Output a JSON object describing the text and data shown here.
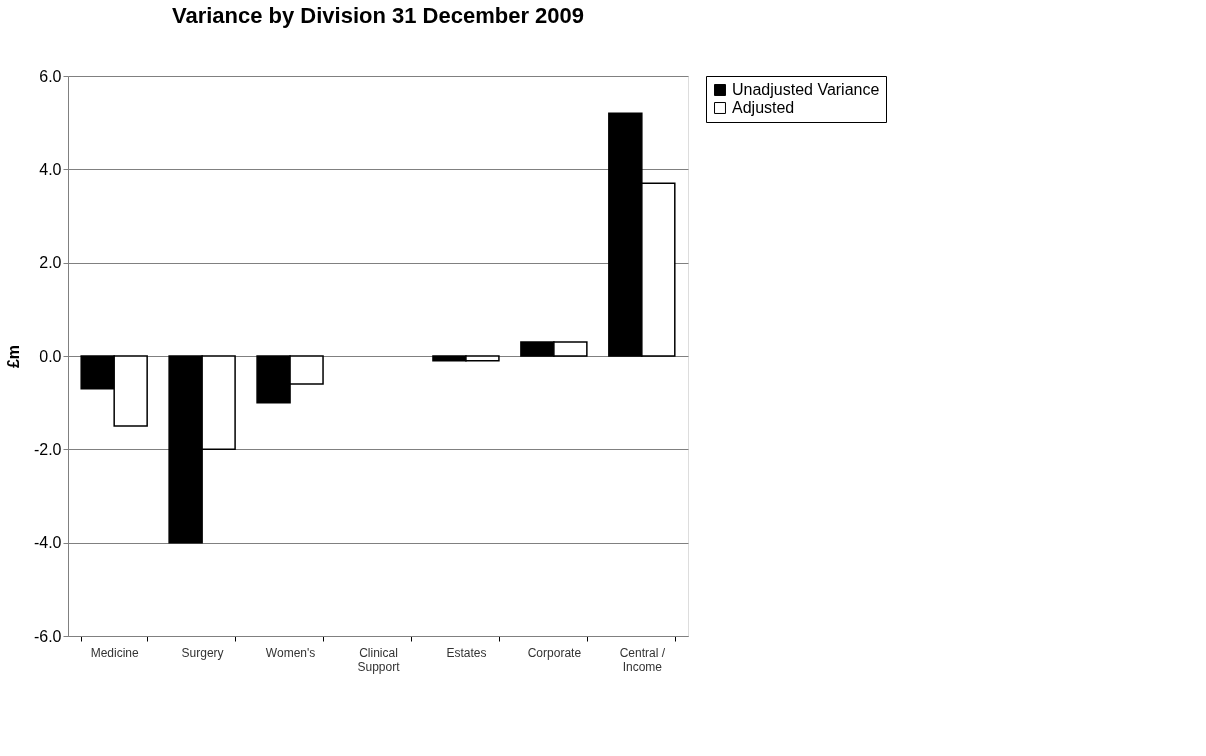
{
  "chart_data": {
    "type": "bar",
    "title": "Variance by Division 31 December 2009",
    "ylabel": "£m",
    "categories": [
      "Medicine",
      "Surgery",
      "Women's",
      "Clinical Support",
      "Estates",
      "Corporate",
      "Central / Income"
    ],
    "series": [
      {
        "name": "Unadjusted Variance",
        "color": "#000000",
        "values": [
          -0.7,
          -4.0,
          -1.0,
          0.0,
          -0.1,
          0.3,
          5.2
        ]
      },
      {
        "name": "Adjusted",
        "color": "#ffffff",
        "values": [
          -1.5,
          -2.0,
          -0.6,
          0.0,
          -0.1,
          0.3,
          3.7
        ]
      }
    ],
    "ylim": [
      -6,
      6
    ],
    "yticks": [
      {
        "value": -6,
        "label": "-6.0"
      },
      {
        "value": -4,
        "label": "-4.0"
      },
      {
        "value": -2,
        "label": "-2.0"
      },
      {
        "value": 0,
        "label": "0.0"
      },
      {
        "value": 2,
        "label": "2.0"
      },
      {
        "value": 4,
        "label": "4.0"
      },
      {
        "value": 6,
        "label": "6.0"
      }
    ],
    "grid": "y",
    "legend": "right"
  }
}
